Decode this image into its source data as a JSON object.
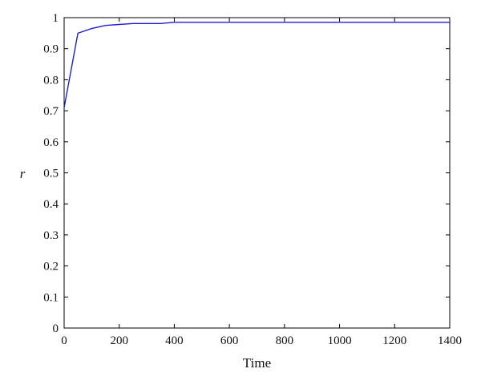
{
  "chart_data": {
    "type": "line",
    "title": "",
    "xlabel": "Time",
    "ylabel": "r",
    "xlim": [
      0,
      1400
    ],
    "ylim": [
      0,
      1
    ],
    "xticks": [
      0,
      200,
      400,
      600,
      800,
      1000,
      1200,
      1400
    ],
    "yticks": [
      0,
      0.1,
      0.2,
      0.3,
      0.4,
      0.5,
      0.6,
      0.7,
      0.8,
      0.9,
      1
    ],
    "grid": false,
    "legend": "none",
    "series": [
      {
        "color": "#1f1fd0",
        "x": [
          0,
          50,
          100,
          150,
          200,
          250,
          300,
          350,
          400,
          1400
        ],
        "y": [
          0.71,
          0.95,
          0.965,
          0.975,
          0.978,
          0.981,
          0.981,
          0.981,
          0.985,
          0.985
        ]
      }
    ]
  }
}
